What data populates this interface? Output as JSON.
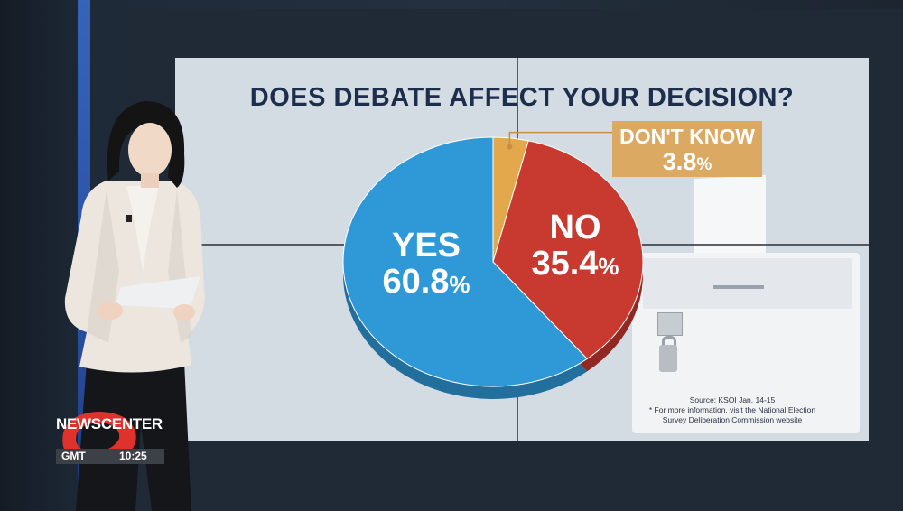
{
  "chart_data": {
    "type": "pie",
    "title": "DOES DEBATE AFFECT YOUR DECISION?",
    "slices": [
      {
        "label": "YES",
        "value": 60.8,
        "value_text": "60.8",
        "color": "#2f99d8"
      },
      {
        "label": "NO",
        "value": 35.4,
        "value_text": "35.4",
        "color": "#c8392f"
      },
      {
        "label": "DON'T KNOW",
        "value": 3.8,
        "value_text": "3.8",
        "color": "#e3a84c"
      }
    ],
    "unit": "%"
  },
  "source": {
    "line1": "Source: KSOI Jan. 14-15",
    "line2": "* For more information, visit the National Election",
    "line3": "Survey Deliberation Commission website"
  },
  "logo": {
    "news": "NEWS",
    "center": "CENTER",
    "gmt_label": "GMT",
    "time": "10:25"
  }
}
